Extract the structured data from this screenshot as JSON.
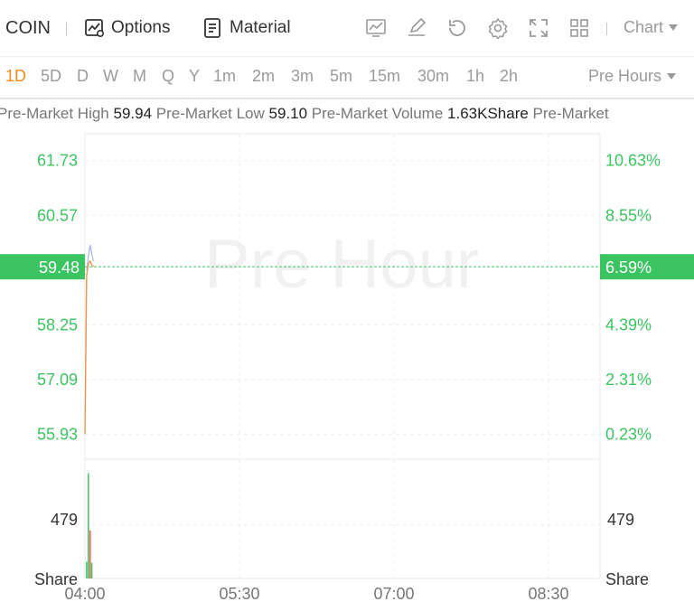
{
  "toolbar": {
    "symbol": "COIN",
    "options_label": "Options",
    "material_label": "Material",
    "chart_label": "Chart",
    "icons": [
      "chart-trend-icon",
      "draw-pen-icon",
      "refresh-icon",
      "gear-icon",
      "fullscreen-icon",
      "grid-layout-icon"
    ]
  },
  "periods": {
    "items": [
      "1D",
      "5D",
      "D",
      "W",
      "M",
      "Q",
      "Y",
      "1m",
      "2m",
      "3m",
      "5m",
      "15m",
      "30m",
      "1h",
      "2h"
    ],
    "active": "1D",
    "session_label": "Pre Hours"
  },
  "info": {
    "high_label": "Pre-Market High",
    "high_value": "59.94",
    "low_label": "Pre-Market Low",
    "low_value": "59.10",
    "volume_label": "Pre-Market Volume",
    "volume_value": "1.63KShare",
    "trailing_label": "Pre-Market"
  },
  "colors": {
    "up": "#3cc462",
    "down": "#f05a4a",
    "accent": "#f08c1e",
    "price_line": "#f0944a",
    "avg_line": "#a8b4f0"
  },
  "chart_data": {
    "type": "line",
    "watermark": "Pre Hour",
    "price_ticks": [
      "61.73",
      "60.57",
      "58.25",
      "57.09",
      "55.93"
    ],
    "pct_ticks": [
      "10.63%",
      "8.55%",
      "4.39%",
      "2.31%",
      "0.23%"
    ],
    "ylim": [
      55.4,
      62.3
    ],
    "current_price": "59.48",
    "current_pct": "6.59%",
    "current_value": 59.48,
    "x_ticks": [
      "04:00",
      "05:30",
      "07:00",
      "08:30"
    ],
    "x_range_minutes": [
      0,
      300
    ],
    "x_tick_minutes": [
      0,
      90,
      180,
      270
    ],
    "price_series": {
      "x": [
        0,
        1,
        2,
        3,
        4,
        5
      ],
      "values": [
        55.93,
        59.3,
        59.55,
        59.6,
        59.52,
        59.48
      ]
    },
    "avg_series": {
      "x": [
        1,
        2,
        3,
        4,
        5
      ],
      "values": [
        59.4,
        59.7,
        59.94,
        59.75,
        59.6
      ]
    },
    "volume": {
      "unit_label": "Share",
      "tick_label": "479",
      "tick_value": 479,
      "ylim": [
        0,
        1000
      ],
      "bars": [
        {
          "x": 1,
          "value": 150,
          "dir": "up"
        },
        {
          "x": 2,
          "value": 940,
          "dir": "up"
        },
        {
          "x": 3,
          "value": 430,
          "dir": "down"
        },
        {
          "x": 4,
          "value": 140,
          "dir": "up"
        }
      ]
    }
  }
}
